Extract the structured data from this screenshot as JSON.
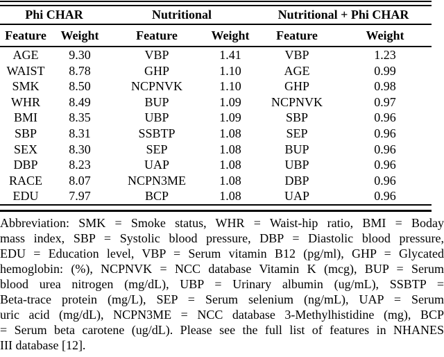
{
  "page": {
    "background_color": "#ffffff",
    "text_color": "#000000",
    "rule_color": "#000000"
  },
  "table": {
    "groups": [
      "Phi CHAR",
      "Nutritional",
      "Nutritional + Phi CHAR"
    ],
    "col_headers": [
      "Feature",
      "Weight",
      "Feature",
      "Weight",
      "Feature",
      "Weight"
    ],
    "rows": [
      [
        "AGE",
        "9.30",
        "VBP",
        "1.41",
        "VBP",
        "1.23"
      ],
      [
        "WAIST",
        "8.78",
        "GHP",
        "1.10",
        "AGE",
        "0.99"
      ],
      [
        "SMK",
        "8.50",
        "NCPNVK",
        "1.10",
        "GHP",
        "0.98"
      ],
      [
        "WHR",
        "8.49",
        "BUP",
        "1.09",
        "NCPNVK",
        "0.97"
      ],
      [
        "BMI",
        "8.35",
        "UBP",
        "1.09",
        "SBP",
        "0.96"
      ],
      [
        "SBP",
        "8.31",
        "SSBTP",
        "1.08",
        "SEP",
        "0.96"
      ],
      [
        "SEX",
        "8.30",
        "SEP",
        "1.08",
        "BUP",
        "0.96"
      ],
      [
        "DBP",
        "8.23",
        "UAP",
        "1.08",
        "UBP",
        "0.96"
      ],
      [
        "RACE",
        "8.07",
        "NCPN3ME",
        "1.08",
        "DBP",
        "0.96"
      ],
      [
        "EDU",
        "7.97",
        "BCP",
        "1.08",
        "UAP",
        "0.96"
      ]
    ]
  },
  "caption": {
    "lines": [
      "Abbreviation: SMK = Smoke status, WHR = Waist-hip ratio, BMI = Boday",
      "mass index, SBP = Systolic blood pressure, DBP = Diastolic blood pressure,",
      "EDU = Education level, VBP = Serum vitamin B12 (pg/ml), GHP = Glycated",
      "hemoglobin: (%), NCPNVK = NCC database Vitamin K (mcg), BUP = Serum",
      "blood urea nitrogen (mg/dL), UBP = Urinary albumin (ug/mL), SSBTP =",
      "Beta-trace protein (mg/L), SEP = Serum selenium (ng/mL), UAP = Serum",
      "uric acid (mg/dL), NCPN3ME = NCC database 3-Methylhistidine (mg), BCP",
      "= Serum beta carotene (ug/dL). Please see the full list of features in NHANES",
      "III database [12]."
    ]
  }
}
